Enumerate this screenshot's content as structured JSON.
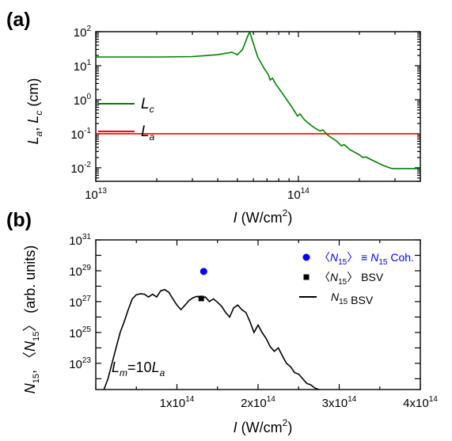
{
  "chart_data": [
    {
      "panel_label": "(a)",
      "type": "line",
      "xlabel_var": "I",
      "xlabel_unit_pre": " (W/cm",
      "xlabel_unit_sup": "2",
      "xlabel_unit_post": ")",
      "ylabel_parts": {
        "a": "L",
        "a_sub": "a",
        "sep": ", ",
        "b": "L",
        "b_sub": "c",
        "unit": " (cm)"
      },
      "x_scale": "log",
      "y_scale": "log",
      "xlim": [
        10000000000000.0,
        400000000000000.0
      ],
      "ylim": [
        0.004,
        100
      ],
      "x_ticks": [
        {
          "value": 10000000000000.0,
          "mantissa": "10",
          "exp": "13"
        },
        {
          "value": 100000000000000.0,
          "mantissa": "10",
          "exp": "14"
        }
      ],
      "y_ticks": [
        {
          "value": 100,
          "mantissa": "10",
          "exp": "2"
        },
        {
          "value": 10,
          "mantissa": "10",
          "exp": "1"
        },
        {
          "value": 1,
          "mantissa": "10",
          "exp": "0"
        },
        {
          "value": 0.1,
          "mantissa": "10",
          "exp": "-1"
        },
        {
          "value": 0.01,
          "mantissa": "10",
          "exp": "-2"
        }
      ],
      "legend_position": "left",
      "series": [
        {
          "name": "L",
          "name_sub": "c",
          "color": "#008000",
          "points": [
            [
              10000000000000.0,
              18
            ],
            [
              20000000000000.0,
              18
            ],
            [
              30000000000000.0,
              18.5
            ],
            [
              40000000000000.0,
              21
            ],
            [
              47000000000000.0,
              25
            ],
            [
              50000000000000.0,
              21
            ],
            [
              53000000000000.0,
              30
            ],
            [
              56000000000000.0,
              70
            ],
            [
              57500000000000.0,
              100
            ],
            [
              59000000000000.0,
              60
            ],
            [
              63000000000000.0,
              18
            ],
            [
              68000000000000.0,
              8
            ],
            [
              71000000000000.0,
              5.5
            ],
            [
              72500000000000.0,
              3.8
            ],
            [
              74500000000000.0,
              4.3
            ],
            [
              77000000000000.0,
              3.0
            ],
            [
              85000000000000.0,
              1.3
            ],
            [
              93000000000000.0,
              0.6
            ],
            [
              99000000000000.0,
              0.33
            ],
            [
              102000000000000.0,
              0.38
            ],
            [
              107000000000000.0,
              0.26
            ],
            [
              115000000000000.0,
              0.18
            ],
            [
              122000000000000.0,
              0.14
            ],
            [
              128000000000000.0,
              0.12
            ],
            [
              132000000000000.0,
              0.13
            ],
            [
              140000000000000.0,
              0.09
            ],
            [
              155000000000000.0,
              0.06
            ],
            [
              163000000000000.0,
              0.044
            ],
            [
              168000000000000.0,
              0.048
            ],
            [
              180000000000000.0,
              0.034
            ],
            [
              200000000000000.0,
              0.024
            ],
            [
              208000000000000.0,
              0.02
            ],
            [
              215000000000000.0,
              0.021
            ],
            [
              235000000000000.0,
              0.016
            ],
            [
              260000000000000.0,
              0.012
            ],
            [
              275000000000000.0,
              0.0105
            ],
            [
              290000000000000.0,
              0.0095
            ],
            [
              350000000000000.0,
              0.0095
            ],
            [
              400000000000000.0,
              0.0095
            ]
          ]
        },
        {
          "name": "L",
          "name_sub": "a",
          "color": "#ff0000",
          "points": [
            [
              10000000000000.0,
              0.1
            ],
            [
              400000000000000.0,
              0.1
            ]
          ]
        }
      ]
    },
    {
      "panel_label": "(b)",
      "type": "line",
      "xlabel_var": "I",
      "xlabel_unit_pre": " (W/cm",
      "xlabel_unit_sup": "2",
      "xlabel_unit_post": ")",
      "ylabel_parts": {
        "n1": "N",
        "n1_sub": "15",
        "sep": ", ",
        "lang": "〈",
        "n2": "N",
        "n2_sub": "15",
        "rang": "〉",
        "unit": " (arb. units)"
      },
      "x_scale": "linear",
      "y_scale": "log",
      "xlim": [
        0,
        400000000000000.0
      ],
      "ylim": [
        2e+21,
        1e+31
      ],
      "x_ticks": [
        {
          "value": 100000000000000.0,
          "mantissa": "1x10",
          "exp": "14"
        },
        {
          "value": 200000000000000.0,
          "mantissa": "2x10",
          "exp": "14"
        },
        {
          "value": 300000000000000.0,
          "mantissa": "3x10",
          "exp": "14"
        },
        {
          "value": 400000000000000.0,
          "mantissa": "4x10",
          "exp": "14"
        }
      ],
      "y_ticks": [
        {
          "value": 1e+31,
          "mantissa": "10",
          "exp": "31"
        },
        {
          "value": 1e+29,
          "mantissa": "10",
          "exp": "29"
        },
        {
          "value": 1e+27,
          "mantissa": "10",
          "exp": "27"
        },
        {
          "value": 1e+25,
          "mantissa": "10",
          "exp": "25"
        },
        {
          "value": 1e+23,
          "mantissa": "10",
          "exp": "23"
        }
      ],
      "annotation": {
        "a": "L",
        "a_sub": "m",
        "mid": "=10",
        "b": "L",
        "b_sub": "a"
      },
      "legend_position": "top-right",
      "series": [
        {
          "name_parts": {
            "lang": "〈",
            "n": "N",
            "sub": "15",
            "rang": "〉",
            "post": " ≡ ",
            "n2": "N",
            "sub2": "15",
            "tail": " Coh."
          },
          "color": "#0000ff",
          "marker": "circle",
          "points": [
            [
              133000000000000.0,
              9e+28
            ]
          ]
        },
        {
          "name_parts": {
            "lang": "〈",
            "n": "N",
            "sub": "15",
            "rang": "〉",
            "tail": " BSV"
          },
          "color": "#000000",
          "marker": "square",
          "points": [
            [
              130000000000000.0,
              1.6e+27
            ]
          ]
        },
        {
          "name_parts": {
            "n": "N",
            "sub": "15",
            "tail": "  BSV"
          },
          "color": "#000000",
          "marker": "line",
          "points": [
            [
              10000000000000.0,
              2e+21
            ],
            [
              15000000000000.0,
              1e+22
            ],
            [
              20000000000000.0,
              1e+23
            ],
            [
              25000000000000.0,
              1e+24
            ],
            [
              30000000000000.0,
              1e+25
            ],
            [
              35000000000000.0,
              5e+25
            ],
            [
              40000000000000.0,
              3e+26
            ],
            [
              45000000000000.0,
              1.5e+27
            ],
            [
              50000000000000.0,
              2.8e+27
            ],
            [
              55000000000000.0,
              3.2e+27
            ],
            [
              60000000000000.0,
              3e+27
            ],
            [
              65000000000000.0,
              2e+27
            ],
            [
              70000000000000.0,
              3e+27
            ],
            [
              75000000000000.0,
              2e+27
            ],
            [
              80000000000000.0,
              5e+27
            ],
            [
              85000000000000.0,
              6e+27
            ],
            [
              90000000000000.0,
              4e+27
            ],
            [
              95000000000000.0,
              1.5e+27
            ],
            [
              100000000000000.0,
              6e+26
            ],
            [
              105000000000000.0,
              3e+26
            ],
            [
              110000000000000.0,
              6e+26
            ],
            [
              115000000000000.0,
              1.2e+27
            ],
            [
              120000000000000.0,
              1.8e+27
            ],
            [
              125000000000000.0,
              2.2e+27
            ],
            [
              130000000000000.0,
              1.6e+27
            ],
            [
              135000000000000.0,
              2e+27
            ],
            [
              140000000000000.0,
              1e+27
            ],
            [
              145000000000000.0,
              1.5e+27
            ],
            [
              150000000000000.0,
              9e+26
            ],
            [
              155000000000000.0,
              5e+26
            ],
            [
              160000000000000.0,
              2e+26
            ],
            [
              165000000000000.0,
              1e+26
            ],
            [
              170000000000000.0,
              4e+26
            ],
            [
              175000000000000.0,
              6e+26
            ],
            [
              180000000000000.0,
              3e+26
            ],
            [
              185000000000000.0,
              2e+26
            ],
            [
              190000000000000.0,
              5e+25
            ],
            [
              195000000000000.0,
              1e+25
            ],
            [
              200000000000000.0,
              3e+25
            ],
            [
              205000000000000.0,
              1e+25
            ],
            [
              210000000000000.0,
              4e+24
            ],
            [
              215000000000000.0,
              1.2e+24
            ],
            [
              220000000000000.0,
              6e+23
            ],
            [
              225000000000000.0,
              1e+24
            ],
            [
              230000000000000.0,
              3e+23
            ],
            [
              235000000000000.0,
              1e+23
            ],
            [
              240000000000000.0,
              6e+22
            ],
            [
              245000000000000.0,
              2.5e+22
            ],
            [
              250000000000000.0,
              2e+22
            ],
            [
              255000000000000.0,
              1e+22
            ],
            [
              260000000000000.0,
              5e+21
            ],
            [
              265000000000000.0,
              4e+21
            ],
            [
              270000000000000.0,
              2.5e+21
            ],
            [
              275000000000000.0,
              2e+21
            ]
          ]
        }
      ]
    }
  ]
}
